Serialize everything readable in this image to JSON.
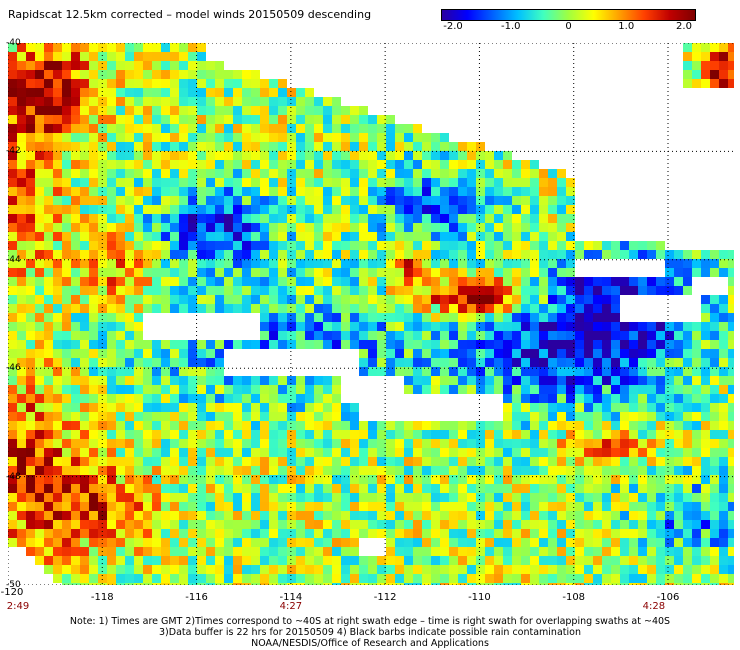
{
  "title": "Rapidscat 12.5km corrected – model winds 20150509 descending",
  "colorbar": {
    "ticks": [
      "-2.0",
      "-1.0",
      "0",
      "1.0",
      "2.0"
    ],
    "range": [
      -2.0,
      2.0
    ],
    "colors": [
      "#2a00a0",
      "#0000ff",
      "#0060ff",
      "#00c0ff",
      "#40ffc0",
      "#a0ff40",
      "#ffff00",
      "#ffa000",
      "#ff4000",
      "#c00000",
      "#800000"
    ]
  },
  "axes": {
    "lon_labels": [
      "-120",
      "-118",
      "-116",
      "-114",
      "-112",
      "-110",
      "-108",
      "-106"
    ],
    "lat_labels": [
      "-40",
      "-42",
      "-44",
      "-46",
      "-48",
      "-50"
    ],
    "lon_range": [
      -120,
      -104.6
    ],
    "lat_range": [
      -50,
      -40
    ]
  },
  "times": [
    "2:49",
    "4:27",
    "4:28"
  ],
  "notes": [
    "Note: 1) Times are GMT 2)Times correspond to ~40S at right swath edge – time is right swath for overlapping swaths at ~40S",
    "3)Data buffer is 22 hrs for 20150509 4) Black barbs indicate possible rain contamination",
    "NOAA/NESDIS/Office of Research and Applications"
  ]
}
